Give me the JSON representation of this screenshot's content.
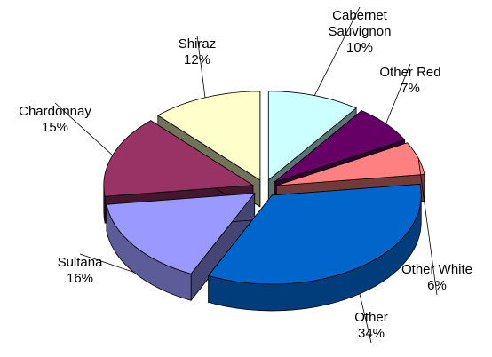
{
  "chart_data": {
    "type": "pie3d",
    "categories": [
      "Cabernet Sauvignon",
      "Other Red",
      "Other White",
      "Other",
      "Sultana",
      "Chardonnay",
      "Shiraz"
    ],
    "values": [
      10,
      7,
      6,
      34,
      16,
      15,
      12
    ],
    "value_labels": [
      "10%",
      "7%",
      "6%",
      "34%",
      "16%",
      "15%",
      "12%"
    ],
    "colors": [
      "#ccffff",
      "#660066",
      "#ff8080",
      "#0066cc",
      "#9999ff",
      "#993366",
      "#ffffcc"
    ]
  }
}
